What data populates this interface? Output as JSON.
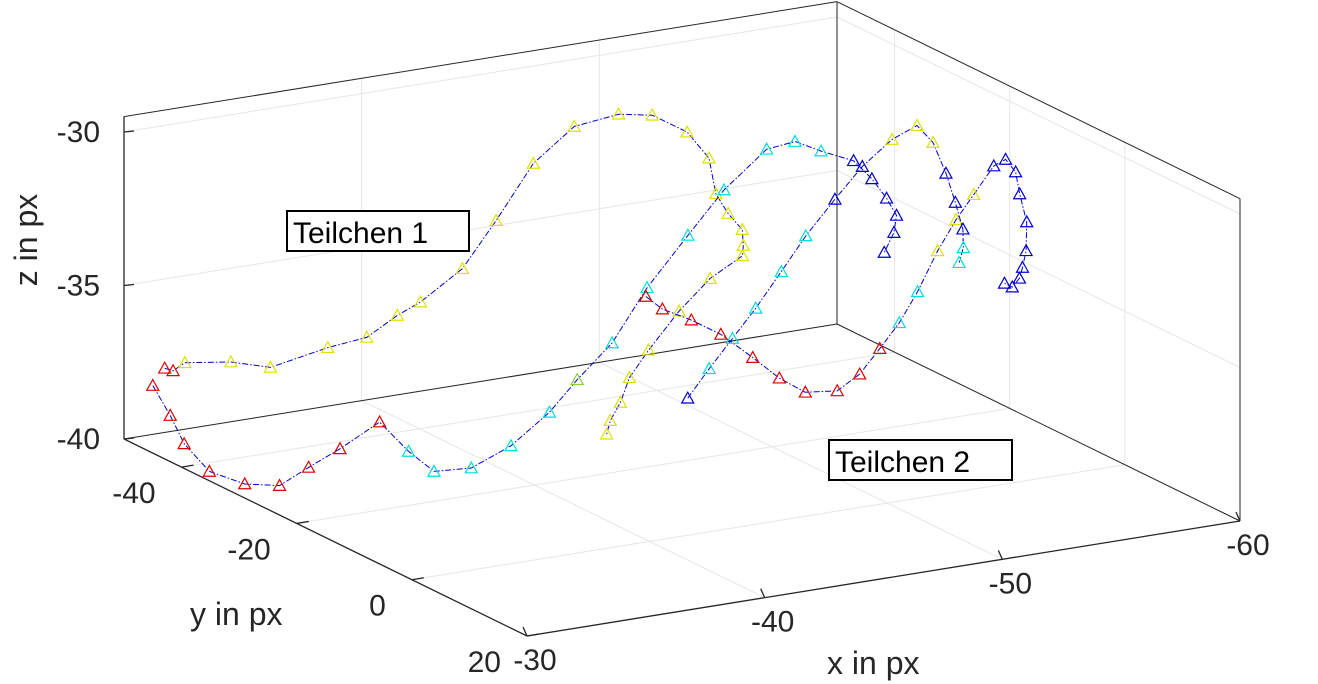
{
  "chart_data": {
    "type": "scatter",
    "title": "",
    "xlabel": "x in px",
    "ylabel": "y in px",
    "zlabel": "z in px",
    "xlim": [
      -30,
      -60
    ],
    "ylim": [
      -50,
      20
    ],
    "zlim": [
      -40,
      -29.5
    ],
    "x_ticks": [
      {
        "value": -30,
        "label": "-30"
      },
      {
        "value": -40,
        "label": "-40"
      },
      {
        "value": -50,
        "label": "-50"
      },
      {
        "value": -60,
        "label": "-60"
      }
    ],
    "y_ticks": [
      {
        "value": -40,
        "label": "-40"
      },
      {
        "value": -20,
        "label": "-20"
      },
      {
        "value": 0,
        "label": "0"
      },
      {
        "value": 20,
        "label": "20"
      }
    ],
    "z_ticks": [
      {
        "value": -30,
        "label": "-30"
      },
      {
        "value": -35,
        "label": "-35"
      },
      {
        "value": -40,
        "label": "-40"
      }
    ],
    "grid": true,
    "marker": "triangle",
    "line_color": "#0000cc",
    "colors": {
      "red": "#dd0000",
      "yellow": "#e0e000",
      "green": "#88cc44",
      "cyan": "#00dddd",
      "blue": "#0000cc"
    },
    "annotations": [
      {
        "text": "Teilchen 1",
        "anchor": "upper-left"
      },
      {
        "text": "Teilchen 2",
        "anchor": "lower-right"
      }
    ],
    "series": [
      {
        "points": [
          [
            -30.5,
            -45.0,
            -37.3,
            "red"
          ],
          [
            -31.0,
            -45.6,
            -37.5,
            "red"
          ],
          [
            -31.3,
            -44.8,
            -37.2,
            "yellow"
          ],
          [
            -32.8,
            -43.0,
            -37.2,
            "yellow"
          ],
          [
            -34.1,
            -41.5,
            -37.4,
            "yellow"
          ],
          [
            -36.2,
            -40.2,
            -36.9,
            "yellow"
          ],
          [
            -37.5,
            -38.8,
            -36.6,
            "yellow"
          ],
          [
            -38.5,
            -37.6,
            -35.9,
            "yellow"
          ],
          [
            -39.3,
            -36.9,
            -35.5,
            "yellow"
          ],
          [
            -40.8,
            -35.8,
            -34.5,
            "yellow"
          ],
          [
            -42.0,
            -34.9,
            -33.0,
            "yellow"
          ],
          [
            -43.3,
            -33.8,
            -31.2,
            "yellow"
          ],
          [
            -44.8,
            -32.9,
            -30.1,
            "yellow"
          ],
          [
            -46.4,
            -31.8,
            -29.8,
            "yellow"
          ],
          [
            -47.6,
            -30.9,
            -29.9,
            "yellow"
          ],
          [
            -48.8,
            -29.8,
            -30.5,
            "yellow"
          ],
          [
            -49.6,
            -29.3,
            -31.4,
            "yellow"
          ],
          [
            -49.5,
            -27.7,
            -32.4,
            "yellow"
          ],
          [
            -49.8,
            -26.8,
            -33.0,
            "yellow"
          ],
          [
            -50.2,
            -26.0,
            -33.5,
            "yellow"
          ],
          [
            -50.0,
            -25.0,
            -33.9,
            "yellow"
          ],
          [
            -49.7,
            -23.9,
            -34.1,
            "yellow"
          ],
          [
            -48.0,
            -22.5,
            -34.5,
            "yellow"
          ],
          [
            -46.5,
            -21.7,
            -35.3,
            "yellow"
          ],
          [
            -45.0,
            -20.8,
            -36.3,
            "yellow"
          ],
          [
            -44.0,
            -20.0,
            -37.0,
            "yellow"
          ],
          [
            -43.5,
            -19.5,
            -37.7,
            "yellow"
          ],
          [
            -43.0,
            -19.2,
            -38.2,
            "yellow"
          ],
          [
            -42.8,
            -19.0,
            -38.6,
            "yellow"
          ]
        ]
      },
      {
        "points": [
          [
            -30.0,
            -45.0,
            -37.8,
            "red"
          ],
          [
            -30.2,
            -42.8,
            -38.6,
            "red"
          ],
          [
            -30.4,
            -41.2,
            -39.4,
            "red"
          ],
          [
            -31.0,
            -39.3,
            -40.2,
            "red"
          ],
          [
            -32.1,
            -37.7,
            -40.6,
            "red"
          ],
          [
            -33.3,
            -36.6,
            -40.7,
            "red"
          ],
          [
            -34.4,
            -36.1,
            -40.2,
            "red"
          ],
          [
            -35.6,
            -35.6,
            -39.7,
            "red"
          ],
          [
            -37.0,
            -34.5,
            -38.9,
            "red"
          ],
          [
            -38.0,
            -33.6,
            -39.9,
            "cyan"
          ],
          [
            -38.9,
            -32.9,
            -40.6,
            "cyan"
          ],
          [
            -40.3,
            -32.2,
            -40.6,
            "cyan"
          ],
          [
            -41.8,
            -31.5,
            -40.0,
            "cyan"
          ],
          [
            -43.2,
            -30.6,
            -39.0,
            "cyan"
          ],
          [
            -44.2,
            -29.9,
            -38.0,
            "green"
          ],
          [
            -45.5,
            -29.2,
            -36.9,
            "cyan"
          ],
          [
            -46.8,
            -28.5,
            -35.2,
            "cyan"
          ],
          [
            -48.3,
            -27.6,
            -33.6,
            "cyan"
          ],
          [
            -49.6,
            -26.7,
            -32.2,
            "cyan"
          ],
          [
            -51.2,
            -25.9,
            -31.0,
            "cyan"
          ],
          [
            -52.2,
            -25.1,
            -30.8,
            "cyan"
          ],
          [
            -53.2,
            -24.7,
            -31.2,
            "cyan"
          ],
          [
            -54.4,
            -24.0,
            -31.6,
            "blue"
          ],
          [
            -55.0,
            -23.3,
            -32.2,
            "blue"
          ],
          [
            -55.4,
            -22.4,
            -32.8,
            "blue"
          ],
          [
            -55.6,
            -21.5,
            -33.3,
            "blue"
          ],
          [
            -55.2,
            -20.3,
            -33.7,
            "blue"
          ],
          [
            -54.6,
            -19.5,
            -34.2,
            "blue"
          ]
        ]
      },
      {
        "points": [
          [
            -46.0,
            -25.4,
            -35.1,
            "red"
          ],
          [
            -46.5,
            -24.6,
            -35.5,
            "red"
          ],
          [
            -47.5,
            -23.7,
            -35.9,
            "red"
          ],
          [
            -48.5,
            -22.7,
            -36.4,
            "red"
          ],
          [
            -49.6,
            -21.7,
            -37.2,
            "red"
          ],
          [
            -50.5,
            -20.8,
            -37.9,
            "red"
          ],
          [
            -51.4,
            -20.0,
            -38.4,
            "red"
          ],
          [
            -52.5,
            -19.0,
            -38.4,
            "red"
          ],
          [
            -53.3,
            -18.4,
            -37.9,
            "red"
          ],
          [
            -54.0,
            -17.8,
            -37.1,
            "red"
          ],
          [
            -54.7,
            -17.3,
            -36.3,
            "cyan"
          ],
          [
            -55.3,
            -16.6,
            -35.3,
            "cyan"
          ],
          [
            -56.0,
            -16.0,
            -34.0,
            "yellow"
          ],
          [
            -56.6,
            -15.3,
            -33.0,
            "yellow"
          ],
          [
            -57.2,
            -14.7,
            -32.2,
            "yellow"
          ],
          [
            -57.9,
            -14.1,
            -31.3,
            "blue"
          ],
          [
            -58.3,
            -13.7,
            -31.1,
            "blue"
          ],
          [
            -58.6,
            -13.2,
            -31.5,
            "blue"
          ],
          [
            -58.7,
            -12.9,
            -32.2,
            "blue"
          ],
          [
            -58.9,
            -12.5,
            -33.1,
            "blue"
          ],
          [
            -58.8,
            -12.2,
            -34.0,
            "blue"
          ],
          [
            -58.6,
            -12.0,
            -34.5,
            "blue"
          ],
          [
            -58.4,
            -11.7,
            -34.8,
            "blue"
          ],
          [
            -58.0,
            -11.3,
            -35.0,
            "blue"
          ],
          [
            -57.6,
            -11.0,
            -34.8,
            "blue"
          ]
        ]
      },
      {
        "points": [
          [
            -46.5,
            -20.2,
            -38.0,
            "blue"
          ],
          [
            -47.5,
            -20.6,
            -37.2,
            "cyan"
          ],
          [
            -48.6,
            -21.1,
            -36.4,
            "cyan"
          ],
          [
            -49.7,
            -21.6,
            -35.6,
            "cyan"
          ],
          [
            -50.9,
            -22.1,
            -34.6,
            "cyan"
          ],
          [
            -52.0,
            -22.4,
            -33.6,
            "cyan"
          ],
          [
            -53.3,
            -22.7,
            -32.6,
            "blue"
          ],
          [
            -54.5,
            -22.9,
            -31.7,
            "blue"
          ],
          [
            -55.8,
            -23.1,
            -31.0,
            "yellow"
          ],
          [
            -56.9,
            -23.3,
            -30.7,
            "yellow"
          ],
          [
            -57.5,
            -23.0,
            -31.3,
            "yellow"
          ],
          [
            -57.9,
            -22.4,
            -32.3,
            "blue"
          ],
          [
            -58.1,
            -21.6,
            -33.2,
            "blue"
          ],
          [
            -58.2,
            -20.7,
            -34.0,
            "blue"
          ],
          [
            -58.0,
            -19.8,
            -34.5,
            "cyan"
          ],
          [
            -57.7,
            -19.3,
            -34.9,
            "cyan"
          ]
        ]
      }
    ]
  }
}
